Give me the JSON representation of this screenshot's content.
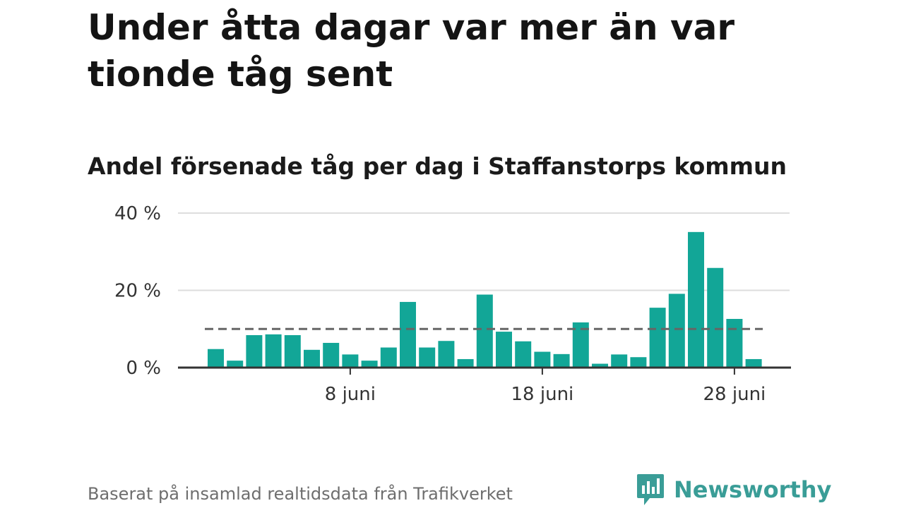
{
  "title": "Under åtta dagar var mer än var tionde tåg sent",
  "subtitle": "Andel försenade tåg per dag i Staffanstorps kommun",
  "source": "Baserat på insamlad realtidsdata från Trafikverket",
  "brand": {
    "name": "Newsworthy",
    "logo_icon": "newsworthy-logo-icon",
    "color": "#3a9d97"
  },
  "colors": {
    "bar": "#12a697",
    "grid": "#dddddd",
    "axis": "#333333",
    "reference_line": "#666666"
  },
  "chart_data": {
    "type": "bar",
    "categories": [
      "1 juni",
      "2 juni",
      "3 juni",
      "4 juni",
      "5 juni",
      "6 juni",
      "7 juni",
      "8 juni",
      "9 juni",
      "10 juni",
      "11 juni",
      "12 juni",
      "13 juni",
      "14 juni",
      "15 juni",
      "16 juni",
      "17 juni",
      "18 juni",
      "19 juni",
      "20 juni",
      "21 juni",
      "22 juni",
      "23 juni",
      "24 juni",
      "25 juni",
      "26 juni",
      "27 juni",
      "28 juni",
      "29 juni"
    ],
    "values": [
      4.8,
      1.8,
      8.4,
      8.6,
      8.4,
      4.6,
      6.4,
      3.4,
      1.8,
      5.2,
      17,
      5.2,
      6.9,
      2.2,
      18.9,
      9.3,
      6.8,
      4.1,
      3.5,
      11.7,
      1.0,
      3.4,
      2.7,
      15.5,
      19.1,
      35.1,
      25.8,
      12.6,
      2.2
    ],
    "reference_line": 10,
    "ylim": [
      0,
      40
    ],
    "yticks": [
      {
        "value": 0,
        "label": "0 %"
      },
      {
        "value": 20,
        "label": "20 %"
      },
      {
        "value": 40,
        "label": "40 %"
      }
    ],
    "xticks": [
      {
        "category": "8 juni",
        "label": "8 juni"
      },
      {
        "category": "18 juni",
        "label": "18 juni"
      },
      {
        "category": "28 juni",
        "label": "28 juni"
      }
    ],
    "grid": true
  }
}
